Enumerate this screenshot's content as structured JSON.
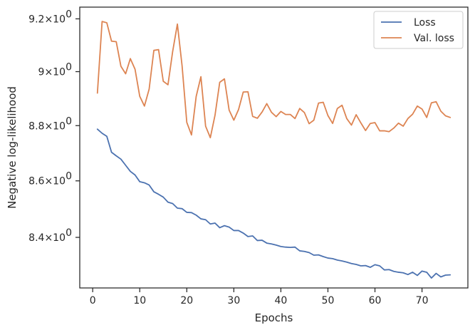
{
  "chart_data": {
    "type": "line",
    "xlabel": "Epochs",
    "ylabel": "Negative log-likelihood",
    "xlim": [
      -2.75,
      79.75
    ],
    "ylim": [
      8.225,
      9.245
    ],
    "x_ticks": [
      0,
      10,
      20,
      30,
      40,
      50,
      60,
      70
    ],
    "y_scale": "log",
    "y_ticks": [
      {
        "value": 8.4,
        "mantissa": "8.4",
        "base": "10",
        "exp": "0"
      },
      {
        "value": 8.6,
        "mantissa": "8.6",
        "base": "10",
        "exp": "0"
      },
      {
        "value": 8.8,
        "mantissa": "8.8",
        "base": "10",
        "exp": "0"
      },
      {
        "value": 9.0,
        "mantissa": "9",
        "base": "10",
        "exp": "0"
      },
      {
        "value": 9.2,
        "mantissa": "9.2",
        "base": "10",
        "exp": "0"
      }
    ],
    "grid": false,
    "legend_position": "top-right",
    "x": [
      1,
      2,
      3,
      4,
      5,
      6,
      7,
      8,
      9,
      10,
      11,
      12,
      13,
      14,
      15,
      16,
      17,
      18,
      19,
      20,
      21,
      22,
      23,
      24,
      25,
      26,
      27,
      28,
      29,
      30,
      31,
      32,
      33,
      34,
      35,
      36,
      37,
      38,
      39,
      40,
      41,
      42,
      43,
      44,
      45,
      46,
      47,
      48,
      49,
      50,
      51,
      52,
      53,
      54,
      55,
      56,
      57,
      58,
      59,
      60,
      61,
      62,
      63,
      64,
      65,
      66,
      67,
      68,
      69,
      70,
      71,
      72,
      73,
      74,
      75,
      76
    ],
    "series": [
      {
        "name": "Loss",
        "color": "#4c72b0",
        "values": [
          8.787,
          8.772,
          8.761,
          8.703,
          8.69,
          8.678,
          8.656,
          8.634,
          8.621,
          8.597,
          8.593,
          8.585,
          8.561,
          8.552,
          8.542,
          8.524,
          8.519,
          8.503,
          8.501,
          8.488,
          8.487,
          8.478,
          8.465,
          8.462,
          8.447,
          8.45,
          8.434,
          8.441,
          8.436,
          8.424,
          8.424,
          8.415,
          8.403,
          8.405,
          8.389,
          8.39,
          8.38,
          8.377,
          8.373,
          8.368,
          8.366,
          8.365,
          8.366,
          8.353,
          8.351,
          8.347,
          8.338,
          8.339,
          8.333,
          8.328,
          8.326,
          8.321,
          8.318,
          8.314,
          8.309,
          8.306,
          8.301,
          8.302,
          8.296,
          8.305,
          8.301,
          8.287,
          8.288,
          8.282,
          8.279,
          8.277,
          8.271,
          8.279,
          8.268,
          8.283,
          8.279,
          8.259,
          8.275,
          8.263,
          8.269,
          8.27
        ]
      },
      {
        "name": "Val. loss",
        "color": "#dd8452",
        "values": [
          8.92,
          9.19,
          9.185,
          9.115,
          9.113,
          9.02,
          8.992,
          9.049,
          9.009,
          8.908,
          8.872,
          8.935,
          9.08,
          9.083,
          8.964,
          8.951,
          9.076,
          9.18,
          9.022,
          8.812,
          8.766,
          8.908,
          8.981,
          8.798,
          8.756,
          8.838,
          8.96,
          8.973,
          8.857,
          8.82,
          8.859,
          8.924,
          8.925,
          8.834,
          8.827,
          8.85,
          8.881,
          8.849,
          8.833,
          8.852,
          8.841,
          8.841,
          8.826,
          8.863,
          8.848,
          8.807,
          8.82,
          8.883,
          8.886,
          8.837,
          8.808,
          8.863,
          8.875,
          8.826,
          8.802,
          8.84,
          8.81,
          8.782,
          8.808,
          8.811,
          8.781,
          8.781,
          8.778,
          8.791,
          8.809,
          8.798,
          8.826,
          8.842,
          8.872,
          8.861,
          8.83,
          8.884,
          8.888,
          8.853,
          8.836,
          8.83
        ]
      }
    ]
  }
}
